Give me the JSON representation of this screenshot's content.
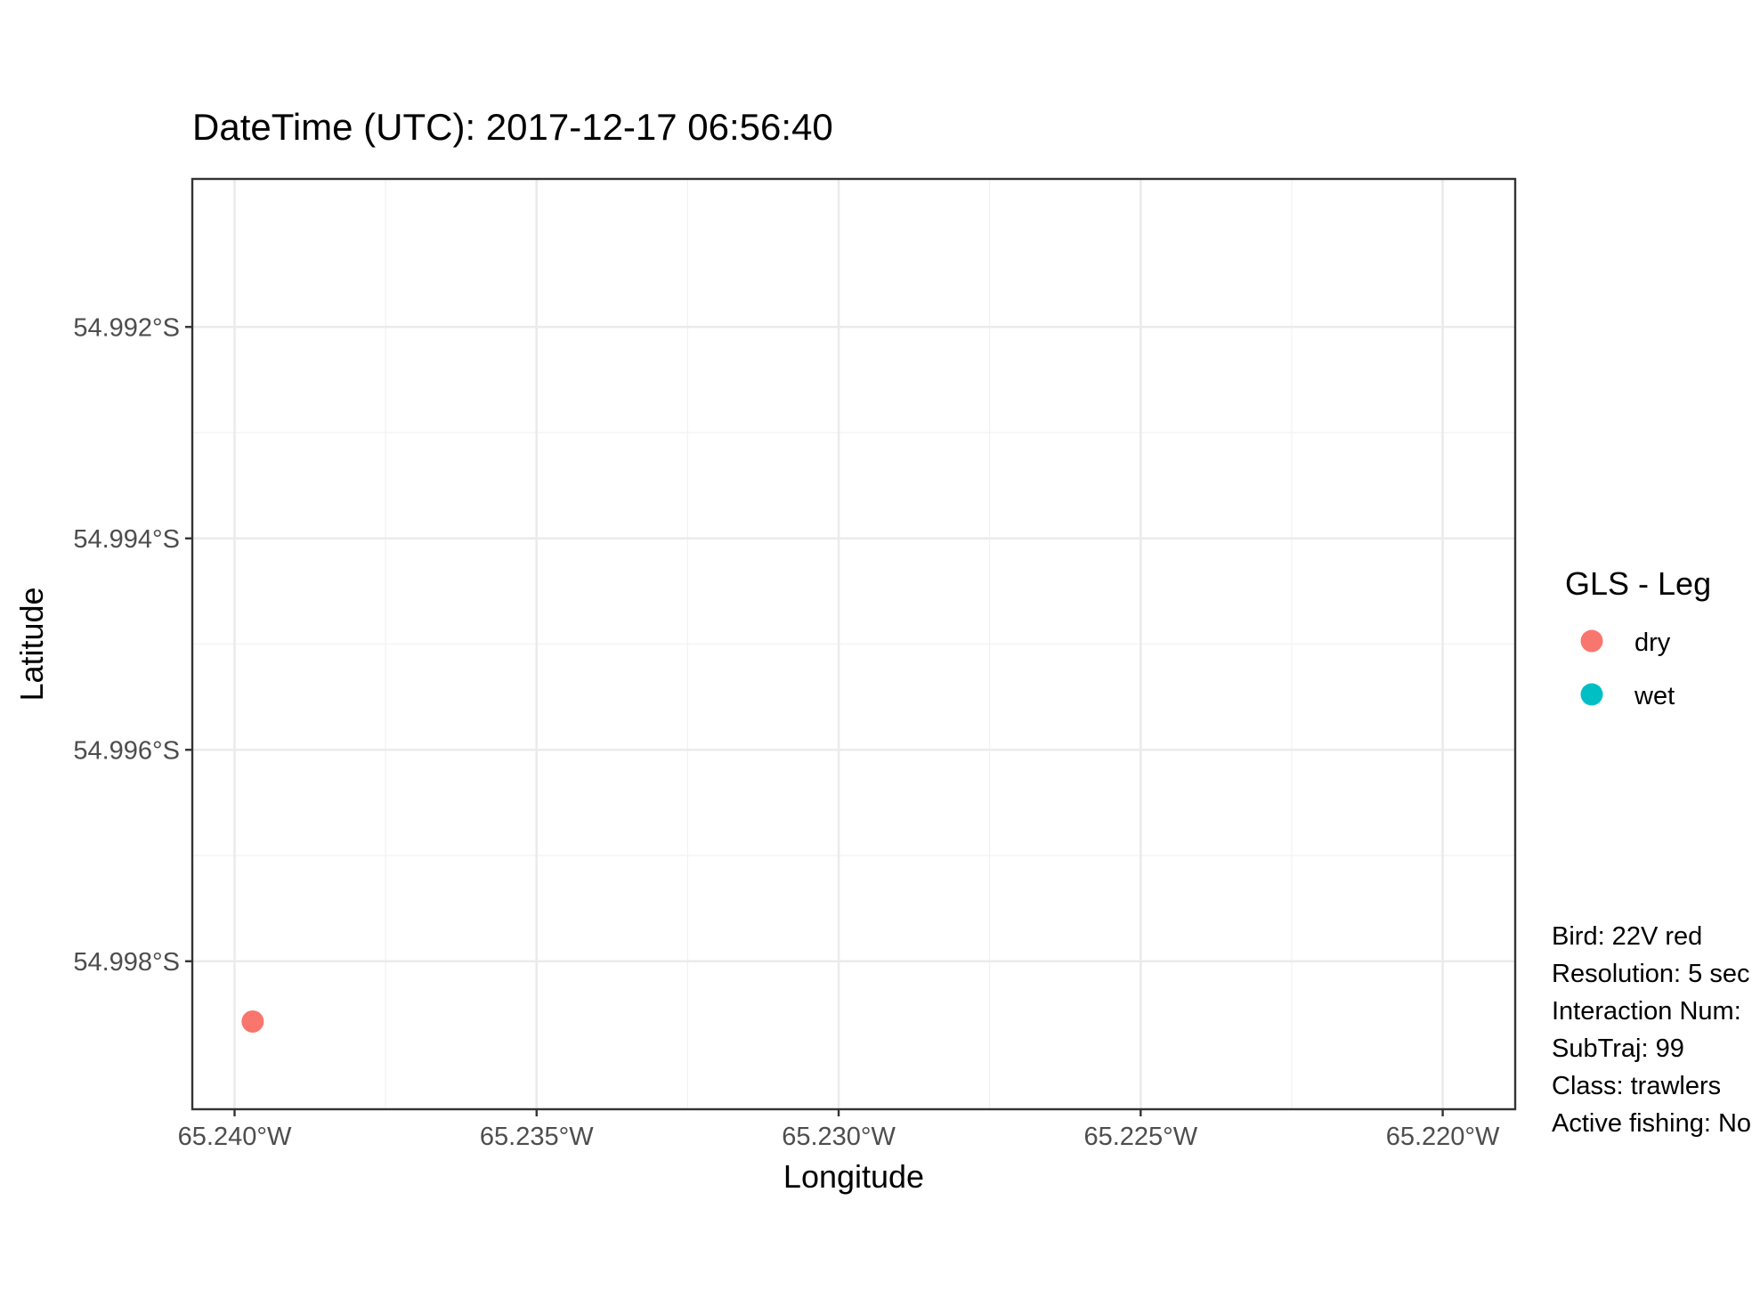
{
  "chart_data": {
    "type": "scatter",
    "title": "DateTime (UTC): 2017-12-17 06:56:40",
    "xlabel": "Longitude",
    "ylabel": "Latitude",
    "xlim": [
      -65.2407,
      -65.2188
    ],
    "ylim": [
      -54.9994,
      -54.9906
    ],
    "x_ticks": [
      {
        "value": -65.24,
        "label": "65.240°W"
      },
      {
        "value": -65.235,
        "label": "65.235°W"
      },
      {
        "value": -65.23,
        "label": "65.230°W"
      },
      {
        "value": -65.225,
        "label": "65.225°W"
      },
      {
        "value": -65.22,
        "label": "65.220°W"
      }
    ],
    "y_ticks": [
      {
        "value": -54.992,
        "label": "54.992°S"
      },
      {
        "value": -54.994,
        "label": "54.994°S"
      },
      {
        "value": -54.996,
        "label": "54.996°S"
      },
      {
        "value": -54.998,
        "label": "54.998°S"
      }
    ],
    "grid": true,
    "legend": {
      "title": "GLS - Leg",
      "placement": "right",
      "entries": [
        {
          "label": "dry",
          "color": "#F8766D"
        },
        {
          "label": "wet",
          "color": "#00BFC4"
        }
      ]
    },
    "series": [
      {
        "name": "dry",
        "color": "#F8766D",
        "points": [
          {
            "x": -65.2397,
            "y": -54.99857
          }
        ]
      },
      {
        "name": "wet",
        "color": "#00BFC4",
        "points": []
      }
    ],
    "annotations": [
      "Bird: 22V red",
      "Resolution: 5 sec",
      "Interaction Num:",
      "SubTraj: 99",
      "Class: trawlers",
      "Active fishing: No"
    ]
  }
}
